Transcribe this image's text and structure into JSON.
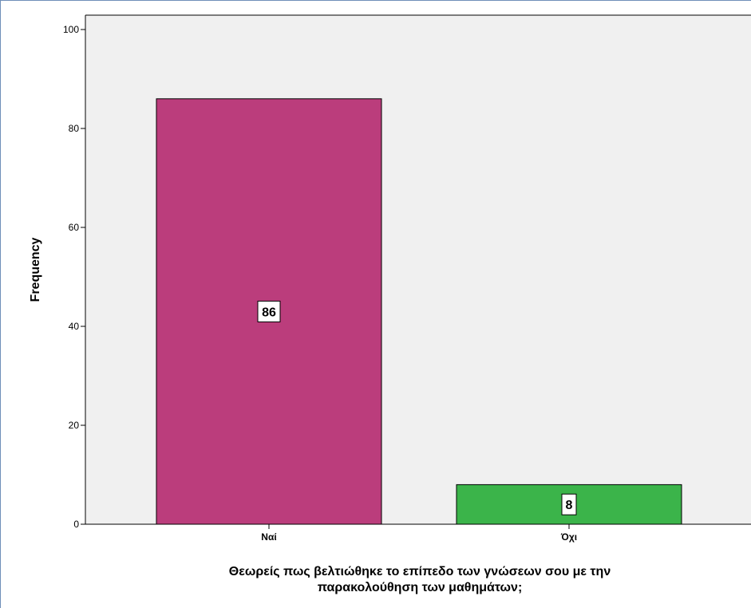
{
  "chart_data": {
    "type": "bar",
    "categories": [
      "Ναί",
      "Όχι"
    ],
    "values": [
      86,
      8
    ],
    "data_labels": [
      "86",
      "8"
    ],
    "colors": [
      "#bb3d7c",
      "#3bb44a"
    ],
    "plot_background": "#f0f0f0",
    "ylabel": "Frequency",
    "xlabel_lines": [
      "Θεωρείς πως βελτιώθηκε το επίπεδο των γνώσεων σου με την",
      "παρακολούθηση των μαθημάτων;"
    ],
    "ylim": [
      0,
      100
    ],
    "yticks": [
      0,
      20,
      40,
      60,
      80,
      100
    ],
    "grid": false,
    "legend": "none"
  }
}
